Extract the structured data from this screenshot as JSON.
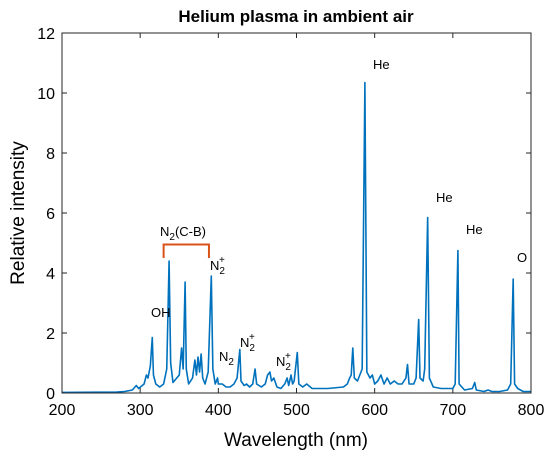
{
  "chart_data": {
    "type": "line",
    "title": "Helium plasma in ambient air",
    "xlabel": "Wavelength (nm)",
    "ylabel": "Relative intensity",
    "color": "#0072bd",
    "x": [
      200,
      270,
      280,
      290,
      295,
      298,
      305,
      308,
      310,
      313,
      315.5,
      317,
      320,
      325,
      330,
      334,
      337,
      339,
      342,
      350,
      353,
      355,
      357.5,
      359,
      362,
      367,
      370,
      372,
      374,
      376,
      378,
      380,
      383,
      387,
      391,
      393,
      396,
      399,
      400,
      405,
      410,
      415,
      420,
      424,
      427.5,
      429,
      433,
      436,
      440,
      444,
      447,
      449,
      455,
      460,
      463,
      466,
      468,
      471,
      475,
      480,
      485,
      488,
      490,
      493,
      495,
      497,
      501,
      503,
      508,
      513,
      520,
      540,
      560,
      565,
      568,
      570,
      572,
      574,
      578,
      581,
      584,
      587.5,
      590,
      594,
      597,
      600,
      604,
      608,
      612,
      616,
      620,
      625,
      630,
      635,
      640,
      642,
      644,
      650,
      653,
      656.3,
      658,
      662,
      664,
      667.8,
      670,
      675,
      685,
      700,
      703,
      706.5,
      708,
      715,
      725,
      728,
      730,
      740,
      745,
      750,
      760,
      770,
      774,
      777.2,
      779,
      783,
      790,
      800
    ],
    "values": [
      0.02,
      0.03,
      0.05,
      0.1,
      0.25,
      0.15,
      0.3,
      0.6,
      0.5,
      0.9,
      1.85,
      0.6,
      0.3,
      0.2,
      0.3,
      0.8,
      4.4,
      1.0,
      0.35,
      0.6,
      1.5,
      0.8,
      3.7,
      0.8,
      0.3,
      0.5,
      1.1,
      0.6,
      1.2,
      0.7,
      1.3,
      0.5,
      0.3,
      0.7,
      3.9,
      0.8,
      0.3,
      0.5,
      0.3,
      0.3,
      0.2,
      0.2,
      0.3,
      0.5,
      1.45,
      0.4,
      0.25,
      0.3,
      0.2,
      0.3,
      0.8,
      0.3,
      0.2,
      0.3,
      0.6,
      0.7,
      0.4,
      0.5,
      0.2,
      0.15,
      0.3,
      0.5,
      0.25,
      0.6,
      0.3,
      0.4,
      1.35,
      0.3,
      0.2,
      0.3,
      0.15,
      0.15,
      0.2,
      0.3,
      0.5,
      0.6,
      1.5,
      0.5,
      0.4,
      0.6,
      0.8,
      10.35,
      0.7,
      0.5,
      0.6,
      0.3,
      0.4,
      0.6,
      0.3,
      0.5,
      0.3,
      0.4,
      0.3,
      0.3,
      0.5,
      0.95,
      0.3,
      0.3,
      0.5,
      2.45,
      0.5,
      0.4,
      0.8,
      5.85,
      0.5,
      0.2,
      0.15,
      0.15,
      0.3,
      4.75,
      0.3,
      0.1,
      0.15,
      0.35,
      0.1,
      0.05,
      0.1,
      0.05,
      0.05,
      0.1,
      0.3,
      3.8,
      0.3,
      0.15,
      0.05,
      0.05
    ],
    "xlim": [
      200,
      800
    ],
    "xticks": [
      200,
      300,
      400,
      500,
      600,
      700,
      800
    ],
    "ylim": [
      0,
      12
    ],
    "yticks": [
      0,
      2,
      4,
      6,
      8,
      10,
      12
    ],
    "annotations": [
      {
        "text": "OH"
      },
      {
        "text": "N",
        "sub": "2",
        "after": "(C-B)"
      },
      {
        "text": "N",
        "sub": "2",
        "sup": "+"
      },
      {
        "text": "N",
        "sub": "2"
      },
      {
        "text": "N",
        "sub": "2",
        "sup": "+"
      },
      {
        "text": "N",
        "sub": "2",
        "sup": "+"
      },
      {
        "text": "He"
      },
      {
        "text": "He"
      },
      {
        "text": "He"
      },
      {
        "text": "O"
      }
    ]
  }
}
